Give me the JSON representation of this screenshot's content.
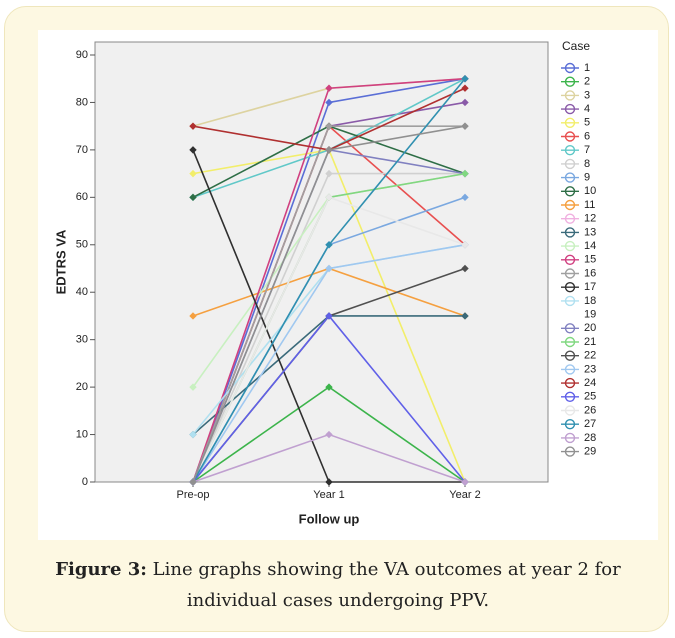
{
  "chart_data": {
    "type": "line",
    "x_label": "Follow up",
    "y_label": "EDTRS VA",
    "legend_title": "Case",
    "categories": [
      "Pre-op",
      "Year 1",
      "Year 2"
    ],
    "ylim": [
      0,
      90
    ],
    "yticks": [
      0,
      10,
      20,
      30,
      40,
      50,
      60,
      70,
      80,
      90
    ],
    "series": [
      {
        "name": "1",
        "color": "#5a6ed6",
        "values": [
          0,
          80,
          85
        ]
      },
      {
        "name": "2",
        "color": "#3cb44b",
        "values": [
          0,
          20,
          0
        ]
      },
      {
        "name": "3",
        "color": "#ddd3a0",
        "values": [
          75,
          83,
          85
        ]
      },
      {
        "name": "4",
        "color": "#8a5aa8",
        "values": [
          0,
          75,
          80
        ]
      },
      {
        "name": "5",
        "color": "#f2ee6a",
        "values": [
          65,
          70,
          0
        ]
      },
      {
        "name": "6",
        "color": "#e85050",
        "values": [
          0,
          75,
          50
        ]
      },
      {
        "name": "7",
        "color": "#60c8c8",
        "values": [
          60,
          70,
          85
        ]
      },
      {
        "name": "8",
        "color": "#d0d0d0",
        "values": [
          0,
          65,
          65
        ]
      },
      {
        "name": "9",
        "color": "#7aa8e0",
        "values": [
          0,
          50,
          60
        ]
      },
      {
        "name": "10",
        "color": "#2e6e46",
        "values": [
          60,
          75,
          65
        ]
      },
      {
        "name": "11",
        "color": "#f5a040",
        "values": [
          35,
          45,
          35
        ]
      },
      {
        "name": "12",
        "color": "#f0b0e0",
        "values": [
          0,
          60,
          65
        ]
      },
      {
        "name": "13",
        "color": "#3a6a7a",
        "values": [
          10,
          35,
          35
        ]
      },
      {
        "name": "14",
        "color": "#c8f0c0",
        "values": [
          20,
          60,
          65
        ]
      },
      {
        "name": "15",
        "color": "#d04080",
        "values": [
          0,
          83,
          85
        ]
      },
      {
        "name": "16",
        "color": "#a0a0a0",
        "values": [
          0,
          75,
          75
        ]
      },
      {
        "name": "17",
        "color": "#303030",
        "values": [
          70,
          0,
          0
        ]
      },
      {
        "name": "18",
        "color": "#b0e0f0",
        "values": [
          10,
          45,
          50
        ]
      },
      {
        "name": "19",
        "color": "#ffffff",
        "values": [
          null,
          null,
          null
        ]
      },
      {
        "name": "20",
        "color": "#8080c0",
        "values": [
          0,
          70,
          65
        ]
      },
      {
        "name": "21",
        "color": "#80d880",
        "values": [
          0,
          60,
          65
        ]
      },
      {
        "name": "22",
        "color": "#505050",
        "values": [
          0,
          35,
          45
        ]
      },
      {
        "name": "23",
        "color": "#a0c8f0",
        "values": [
          0,
          45,
          50
        ]
      },
      {
        "name": "24",
        "color": "#b03030",
        "values": [
          75,
          70,
          83
        ]
      },
      {
        "name": "25",
        "color": "#6060e8",
        "values": [
          0,
          35,
          0
        ]
      },
      {
        "name": "26",
        "color": "#e8e8e8",
        "values": [
          0,
          60,
          50
        ]
      },
      {
        "name": "27",
        "color": "#3090b0",
        "values": [
          0,
          50,
          85
        ]
      },
      {
        "name": "28",
        "color": "#c0a0d0",
        "values": [
          0,
          10,
          0
        ]
      },
      {
        "name": "29",
        "color": "#909090",
        "values": [
          0,
          70,
          75
        ]
      }
    ]
  },
  "caption": {
    "label": "Figure 3:",
    "text": "Line graphs showing the VA outcomes at year 2 for individual cases undergoing PPV."
  }
}
